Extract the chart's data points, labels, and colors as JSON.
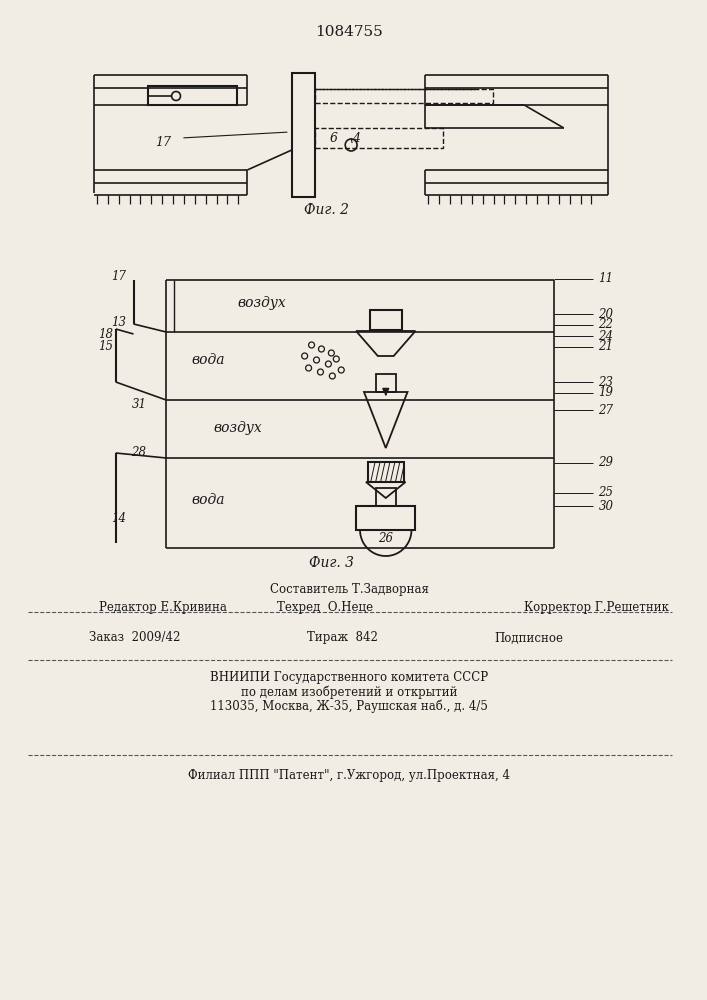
{
  "title": "1084755",
  "fig2_caption": "Фиг. 2",
  "fig3_caption": "Фиг. 3",
  "bg_color": "#f2ede4",
  "line_color": "#1a1a1a",
  "footer": {
    "l1": "Составитель Т.Задворная",
    "l2a": "Редактор Е.Кривина",
    "l2b": "Техред  О.Неце",
    "l2c": "Корректор Г.Решетник",
    "l3a": "Заказ  2009/42",
    "l3b": "Тираж  842",
    "l3c": "Подписное",
    "l4": "ВНИИПИ Государственного комитета СССР",
    "l5": "по делам изобретений и открытий",
    "l6": "113035, Москва, Ж-35, Раушская наб., д. 4/5",
    "l7": "Филиал ППП \"Патент\", г.Ужгород, ул.Проектная, 4"
  }
}
